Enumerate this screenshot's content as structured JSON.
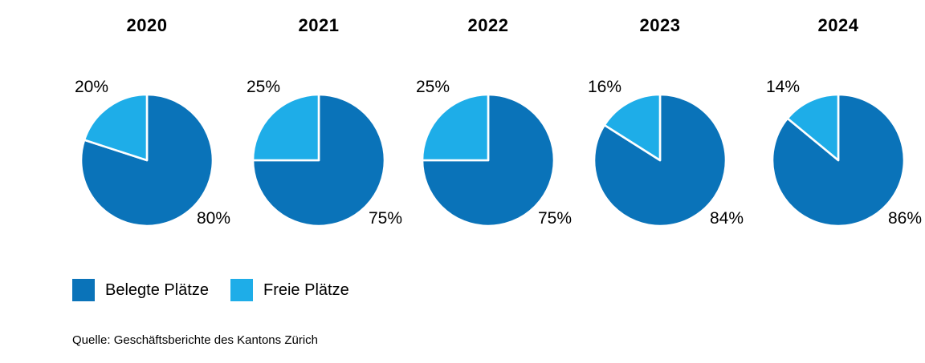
{
  "chart_data": {
    "type": "pie",
    "title": "",
    "categories": [
      "2020",
      "2021",
      "2022",
      "2023",
      "2024"
    ],
    "series": [
      {
        "name": "Belegte Plätze",
        "color": "#0A73B9",
        "values": [
          80,
          75,
          75,
          84,
          86
        ]
      },
      {
        "name": "Freie Plätze",
        "color": "#1EADE8",
        "values": [
          20,
          25,
          25,
          16,
          14
        ]
      }
    ],
    "unit": "%",
    "start_angle_deg": 0,
    "direction": "clockwise",
    "separator_color": "#FFFFFF",
    "legend_position": "bottom-left"
  },
  "source_note": "Quelle: Geschäftsberichte des Kantons Zürich"
}
